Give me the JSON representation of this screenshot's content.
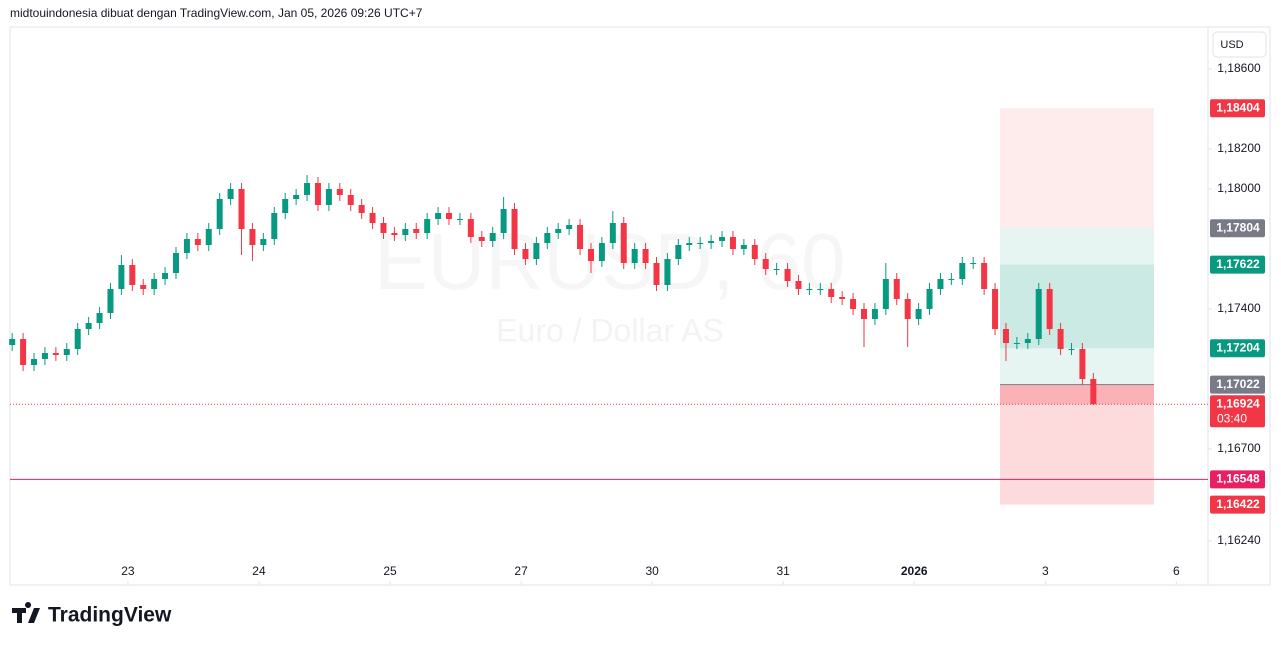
{
  "header": {
    "title": "midtouindonesia dibuat dengan TradingView.com, Jan 05, 2026 09:26 UTC+7"
  },
  "chart_data": {
    "type": "candlestick",
    "title": "EURUSD, 60",
    "subtitle": "Euro / Dollar AS",
    "currency": "USD",
    "open": [
      1.1722,
      1.1725,
      1.1712,
      1.1715,
      1.1718,
      1.1717,
      1.172,
      1.173,
      1.1733,
      1.1738,
      1.175,
      1.1762,
      1.1752,
      1.175,
      1.1755,
      1.1758,
      1.1768,
      1.1775,
      1.1772,
      1.178,
      1.1795,
      1.18,
      1.178,
      1.1772,
      1.1775,
      1.1788,
      1.1795,
      1.1797,
      1.1803,
      1.1792,
      1.18,
      1.1797,
      1.1792,
      1.1788,
      1.1783,
      1.1778,
      1.1777,
      1.178,
      1.1778,
      1.1785,
      1.1788,
      1.1785,
      1.1785,
      1.1776,
      1.1774,
      1.1778,
      1.179,
      1.177,
      1.1765,
      1.1773,
      1.1778,
      1.178,
      1.1782,
      1.177,
      1.1764,
      1.1773,
      1.1783,
      1.1763,
      1.177,
      1.1763,
      1.1752,
      1.1765,
      1.1772,
      1.1773,
      1.1773,
      1.1774,
      1.1776,
      1.177,
      1.1772,
      1.1765,
      1.176,
      1.176,
      1.1754,
      1.175,
      1.175,
      1.175,
      1.1746,
      1.1745,
      1.174,
      1.1735,
      1.174,
      1.1755,
      1.1745,
      1.1735,
      1.174,
      1.175,
      1.1755,
      1.1755,
      1.1763,
      1.1763,
      1.175,
      1.173,
      1.1723,
      1.1723,
      1.1725,
      1.175,
      1.173,
      1.172,
      1.172,
      1.1705
    ],
    "high": [
      1.1728,
      1.1728,
      1.1718,
      1.1721,
      1.1721,
      1.1723,
      1.1733,
      1.1736,
      1.1741,
      1.1753,
      1.1767,
      1.1765,
      1.1755,
      1.1758,
      1.1761,
      1.1771,
      1.1778,
      1.1778,
      1.1783,
      1.1798,
      1.1803,
      1.1803,
      1.1783,
      1.1778,
      1.1791,
      1.1798,
      1.18,
      1.1807,
      1.1806,
      1.1803,
      1.1803,
      1.18,
      1.1795,
      1.1791,
      1.1786,
      1.1781,
      1.1783,
      1.1783,
      1.1788,
      1.1791,
      1.1791,
      1.1788,
      1.1788,
      1.1779,
      1.1781,
      1.1796,
      1.1793,
      1.1773,
      1.1776,
      1.1781,
      1.1783,
      1.1785,
      1.1785,
      1.1773,
      1.1776,
      1.1789,
      1.1786,
      1.1773,
      1.1773,
      1.1766,
      1.1768,
      1.1775,
      1.1776,
      1.1776,
      1.1777,
      1.1779,
      1.1779,
      1.1775,
      1.1775,
      1.1768,
      1.1763,
      1.1763,
      1.1757,
      1.1753,
      1.1753,
      1.1753,
      1.1749,
      1.1748,
      1.1743,
      1.1743,
      1.1763,
      1.1758,
      1.1748,
      1.1743,
      1.1753,
      1.1758,
      1.1758,
      1.1766,
      1.1766,
      1.1766,
      1.1753,
      1.1733,
      1.1726,
      1.1728,
      1.1753,
      1.1753,
      1.1733,
      1.1723,
      1.1723,
      1.1708
    ],
    "low": [
      1.1719,
      1.1709,
      1.1709,
      1.1712,
      1.1714,
      1.1714,
      1.1717,
      1.1727,
      1.173,
      1.1735,
      1.1747,
      1.1749,
      1.1747,
      1.1747,
      1.1752,
      1.1755,
      1.1765,
      1.1769,
      1.1769,
      1.1777,
      1.1792,
      1.1767,
      1.1764,
      1.1769,
      1.1772,
      1.1785,
      1.1792,
      1.1794,
      1.1789,
      1.1789,
      1.1794,
      1.1789,
      1.1785,
      1.178,
      1.1775,
      1.1774,
      1.1774,
      1.1775,
      1.1775,
      1.1782,
      1.1782,
      1.1782,
      1.1773,
      1.1771,
      1.1771,
      1.1775,
      1.1767,
      1.1762,
      1.1762,
      1.177,
      1.1775,
      1.1777,
      1.1767,
      1.1758,
      1.1761,
      1.177,
      1.176,
      1.176,
      1.176,
      1.1749,
      1.1749,
      1.1762,
      1.1769,
      1.177,
      1.177,
      1.1771,
      1.1767,
      1.1767,
      1.1762,
      1.1757,
      1.1757,
      1.1751,
      1.1747,
      1.1747,
      1.1747,
      1.1743,
      1.1742,
      1.1737,
      1.1721,
      1.1732,
      1.1737,
      1.1742,
      1.1721,
      1.1732,
      1.1737,
      1.1747,
      1.1752,
      1.1752,
      1.176,
      1.1747,
      1.1727,
      1.1714,
      1.172,
      1.172,
      1.1722,
      1.1727,
      1.1717,
      1.1717,
      1.1702,
      1.1692
    ],
    "close": [
      1.1725,
      1.1712,
      1.1715,
      1.1718,
      1.1717,
      1.172,
      1.173,
      1.1733,
      1.1738,
      1.175,
      1.1762,
      1.1752,
      1.175,
      1.1755,
      1.1758,
      1.1768,
      1.1775,
      1.1772,
      1.178,
      1.1795,
      1.18,
      1.178,
      1.1772,
      1.1775,
      1.1788,
      1.1795,
      1.1797,
      1.1803,
      1.1792,
      1.18,
      1.1797,
      1.1792,
      1.1788,
      1.1783,
      1.1778,
      1.1777,
      1.178,
      1.1778,
      1.1785,
      1.1788,
      1.1785,
      1.1785,
      1.1776,
      1.1774,
      1.1778,
      1.179,
      1.177,
      1.1765,
      1.1773,
      1.1778,
      1.178,
      1.1782,
      1.177,
      1.1764,
      1.1773,
      1.1783,
      1.1763,
      1.177,
      1.1763,
      1.1752,
      1.1765,
      1.1772,
      1.1773,
      1.1773,
      1.1774,
      1.1776,
      1.177,
      1.1772,
      1.1765,
      1.176,
      1.176,
      1.1754,
      1.175,
      1.175,
      1.175,
      1.1746,
      1.1745,
      1.174,
      1.1735,
      1.174,
      1.1755,
      1.1745,
      1.1735,
      1.174,
      1.175,
      1.1755,
      1.1755,
      1.1763,
      1.1763,
      1.175,
      1.173,
      1.1723,
      1.1723,
      1.1725,
      1.175,
      1.173,
      1.172,
      1.172,
      1.1705,
      1.16924
    ],
    "up_color": "#089981",
    "down_color": "#f23645",
    "xlim": [
      -0.2,
      109.5
    ],
    "xticks": [
      {
        "value": 10.6,
        "label": "23"
      },
      {
        "value": 22.6,
        "label": "24"
      },
      {
        "value": 34.6,
        "label": "25"
      },
      {
        "value": 46.6,
        "label": "27"
      },
      {
        "value": 58.6,
        "label": "30"
      },
      {
        "value": 70.6,
        "label": "31"
      },
      {
        "value": 82.6,
        "label": "2026"
      },
      {
        "value": 94.6,
        "label": "3"
      },
      {
        "value": 106.6,
        "label": "6"
      }
    ],
    "ylim": [
      1.1602,
      1.1881
    ],
    "yticks": [
      {
        "value": 1.186,
        "label": "1,18600"
      },
      {
        "value": 1.182,
        "label": "1,18200"
      },
      {
        "value": 1.18,
        "label": "1,18000"
      },
      {
        "value": 1.174,
        "label": "1,17400"
      },
      {
        "value": 1.167,
        "label": "1,16700"
      },
      {
        "value": 1.1624,
        "label": "1,16240"
      }
    ],
    "price_labels": [
      {
        "value": 1.18404,
        "label": "1,18404",
        "color": "#f23645"
      },
      {
        "value": 1.17804,
        "label": "1,17804",
        "color": "#787b86"
      },
      {
        "value": 1.17622,
        "label": "1,17622",
        "color": "#089981"
      },
      {
        "value": 1.17204,
        "label": "1,17204",
        "color": "#089981"
      },
      {
        "value": 1.17022,
        "label": "1,17022",
        "color": "#787b86"
      },
      {
        "value": 1.16924,
        "label": "1,16924",
        "color": "#f23645"
      },
      {
        "value": 1.16548,
        "label": "1,16548",
        "color": "#e91e63"
      },
      {
        "value": 1.16422,
        "label": "1,16422",
        "color": "#f23645"
      }
    ],
    "countdown": "03:40"
  },
  "footer": {
    "logo": "TradingView"
  }
}
